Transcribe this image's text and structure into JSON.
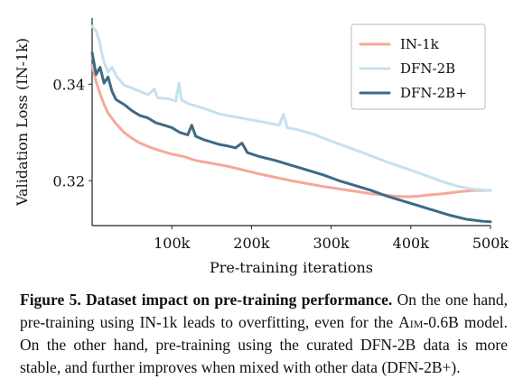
{
  "chart_data": {
    "type": "line",
    "title": "",
    "xlabel": "Pre-training iterations",
    "ylabel": "Validation Loss (IN-1k)",
    "xlim": [
      0,
      500000
    ],
    "ylim": [
      0.3107,
      0.3537
    ],
    "x_ticks": [
      100000,
      200000,
      300000,
      400000,
      500000
    ],
    "x_tick_labels": [
      "100k",
      "200k",
      "300k",
      "400k",
      "500k"
    ],
    "y_ticks": [
      0.32,
      0.34
    ],
    "y_tick_labels": [
      "0.32",
      "0.34"
    ],
    "grid": false,
    "legend_position": "top-right",
    "series": [
      {
        "name": "IN-1k",
        "color": "#f4a99b",
        "points": [
          [
            0,
            0.344
          ],
          [
            5000,
            0.3405
          ],
          [
            10000,
            0.338
          ],
          [
            15000,
            0.3358
          ],
          [
            20000,
            0.334
          ],
          [
            30000,
            0.3318
          ],
          [
            40000,
            0.33
          ],
          [
            50000,
            0.3288
          ],
          [
            60000,
            0.3278
          ],
          [
            70000,
            0.3271
          ],
          [
            80000,
            0.3265
          ],
          [
            90000,
            0.326
          ],
          [
            100000,
            0.3255
          ],
          [
            115000,
            0.325
          ],
          [
            130000,
            0.3242
          ],
          [
            150000,
            0.3236
          ],
          [
            170000,
            0.323
          ],
          [
            190000,
            0.3222
          ],
          [
            210000,
            0.3214
          ],
          [
            230000,
            0.3207
          ],
          [
            250000,
            0.32
          ],
          [
            270000,
            0.3194
          ],
          [
            290000,
            0.3188
          ],
          [
            310000,
            0.3183
          ],
          [
            330000,
            0.3178
          ],
          [
            350000,
            0.3173
          ],
          [
            370000,
            0.317
          ],
          [
            380000,
            0.3168
          ],
          [
            390000,
            0.3167
          ],
          [
            400000,
            0.3167
          ],
          [
            410000,
            0.3168
          ],
          [
            420000,
            0.317
          ],
          [
            440000,
            0.3173
          ],
          [
            460000,
            0.3177
          ],
          [
            480000,
            0.318
          ],
          [
            500000,
            0.318
          ]
        ]
      },
      {
        "name": "DFN-2B",
        "color": "#c5e1ef",
        "points": [
          [
            0,
            0.352
          ],
          [
            5000,
            0.351
          ],
          [
            9000,
            0.349
          ],
          [
            12000,
            0.3465
          ],
          [
            15000,
            0.3445
          ],
          [
            20000,
            0.3425
          ],
          [
            25000,
            0.3435
          ],
          [
            30000,
            0.3418
          ],
          [
            40000,
            0.3398
          ],
          [
            50000,
            0.3392
          ],
          [
            60000,
            0.3385
          ],
          [
            70000,
            0.3378
          ],
          [
            78000,
            0.339
          ],
          [
            82000,
            0.3372
          ],
          [
            95000,
            0.337
          ],
          [
            105000,
            0.3365
          ],
          [
            109000,
            0.3402
          ],
          [
            112000,
            0.3368
          ],
          [
            120000,
            0.336
          ],
          [
            140000,
            0.335
          ],
          [
            160000,
            0.3338
          ],
          [
            180000,
            0.3332
          ],
          [
            200000,
            0.3326
          ],
          [
            220000,
            0.332
          ],
          [
            235000,
            0.3315
          ],
          [
            240000,
            0.3338
          ],
          [
            245000,
            0.331
          ],
          [
            260000,
            0.3305
          ],
          [
            280000,
            0.3295
          ],
          [
            300000,
            0.3282
          ],
          [
            320000,
            0.327
          ],
          [
            340000,
            0.3258
          ],
          [
            360000,
            0.3245
          ],
          [
            380000,
            0.3233
          ],
          [
            400000,
            0.3222
          ],
          [
            420000,
            0.321
          ],
          [
            440000,
            0.3198
          ],
          [
            460000,
            0.3188
          ],
          [
            480000,
            0.3182
          ],
          [
            500000,
            0.318
          ]
        ]
      },
      {
        "name": "DFN-2B+",
        "color": "#3e6a85",
        "points": [
          [
            0,
            0.3465
          ],
          [
            5000,
            0.342
          ],
          [
            10000,
            0.3435
          ],
          [
            15000,
            0.3402
          ],
          [
            20000,
            0.3415
          ],
          [
            25000,
            0.3385
          ],
          [
            30000,
            0.3368
          ],
          [
            40000,
            0.3358
          ],
          [
            50000,
            0.3345
          ],
          [
            60000,
            0.3335
          ],
          [
            70000,
            0.333
          ],
          [
            80000,
            0.332
          ],
          [
            90000,
            0.3315
          ],
          [
            100000,
            0.331
          ],
          [
            110000,
            0.33
          ],
          [
            120000,
            0.3295
          ],
          [
            125000,
            0.3315
          ],
          [
            130000,
            0.3292
          ],
          [
            140000,
            0.3285
          ],
          [
            150000,
            0.328
          ],
          [
            160000,
            0.3275
          ],
          [
            170000,
            0.3272
          ],
          [
            180000,
            0.3268
          ],
          [
            188000,
            0.3278
          ],
          [
            195000,
            0.3258
          ],
          [
            210000,
            0.325
          ],
          [
            230000,
            0.3242
          ],
          [
            250000,
            0.3232
          ],
          [
            270000,
            0.3222
          ],
          [
            290000,
            0.3212
          ],
          [
            310000,
            0.32
          ],
          [
            330000,
            0.319
          ],
          [
            350000,
            0.318
          ],
          [
            370000,
            0.3168
          ],
          [
            390000,
            0.3158
          ],
          [
            410000,
            0.3148
          ],
          [
            430000,
            0.3138
          ],
          [
            450000,
            0.3128
          ],
          [
            470000,
            0.312
          ],
          [
            490000,
            0.3116
          ],
          [
            500000,
            0.3115
          ]
        ]
      }
    ]
  },
  "caption": {
    "title": "Figure 5. Dataset impact on pre-training performance.",
    "text_1": "On the one hand, pre-training using IN-1k leads to overfitting, even for the",
    "model_name": "Aim",
    "text_2": "-0.6B model. On the other hand, pre-training using the",
    "text_3": "curated DFN-2B data is more stable, and further improves when mixed with other data (DFN-2B+)."
  }
}
